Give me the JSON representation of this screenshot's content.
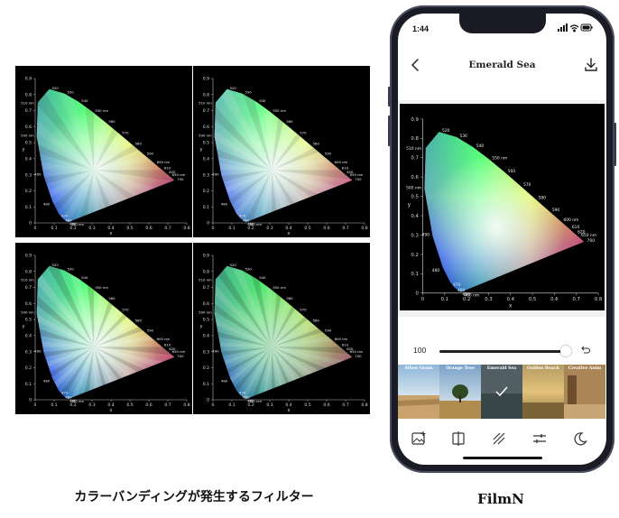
{
  "captions": {
    "left": "カラーバンディングが発生するフィルター",
    "right": "FilmN"
  },
  "cie_chart": {
    "y_ticks": [
      "0",
      "0.1",
      "0.2",
      "0.3",
      "0.4",
      "0.5",
      "0.6",
      "0.7",
      "0.8",
      "0.9"
    ],
    "x_ticks": [
      "0",
      "0.1",
      "0.2",
      "0.3",
      "0.4",
      "0.5",
      "0.6",
      "0.7",
      "0.8"
    ],
    "x_label": "x",
    "y_label": "y",
    "wavelength_labels": [
      "520",
      "510 nm",
      "530",
      "540",
      "550 nm",
      "560",
      "570",
      "580",
      "590",
      "600 nm",
      "610",
      "620",
      "650 nm",
      "700",
      "500 nm",
      "490",
      "480",
      "470",
      "460",
      "450",
      "400 nm"
    ]
  },
  "phone": {
    "status": {
      "time": "1:44"
    },
    "nav": {
      "title": "Emerald Sea"
    },
    "slider": {
      "value": "100",
      "level_fraction": 1.0
    },
    "filters": [
      {
        "name": "Silver Grass",
        "selected": false
      },
      {
        "name": "Orange Tree",
        "selected": false
      },
      {
        "name": "Emerald Sea",
        "selected": true
      },
      {
        "name": "Golden Beach",
        "selected": false
      },
      {
        "name": "Creative Anim",
        "selected": false
      }
    ],
    "toolbar_icons": [
      "image-add-icon",
      "compare-split-icon",
      "grain-texture-icon",
      "adjust-sliders-icon",
      "moon-icon"
    ],
    "colors": {
      "background": "#ffffff",
      "frame": "#1a1b24",
      "chart_bg": "#000000"
    }
  }
}
